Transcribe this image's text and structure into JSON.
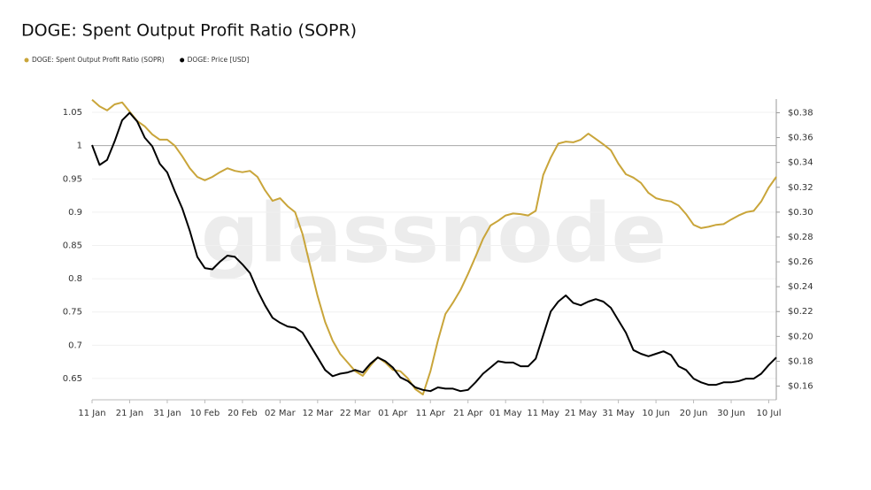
{
  "chart_data": {
    "type": "line",
    "title": "DOGE: Spent Output Profit Ratio (SOPR)",
    "watermark": "glassnode",
    "categories": [
      "11 Jan",
      null,
      null,
      null,
      null,
      "21 Jan",
      null,
      null,
      null,
      null,
      "31 Jan",
      null,
      null,
      null,
      null,
      "10 Feb",
      null,
      null,
      null,
      null,
      "20 Feb",
      null,
      null,
      null,
      null,
      "02 Mar",
      null,
      null,
      null,
      null,
      "12 Mar",
      null,
      null,
      null,
      null,
      "22 Mar",
      null,
      null,
      null,
      null,
      "01 Apr",
      null,
      null,
      null,
      null,
      "11 Apr",
      null,
      null,
      null,
      null,
      "21 Apr",
      null,
      null,
      null,
      null,
      "01 May",
      null,
      null,
      null,
      null,
      "11 May",
      null,
      null,
      null,
      null,
      "21 May",
      null,
      null,
      null,
      null,
      "31 May",
      null,
      null,
      null,
      null,
      "10 Jun",
      null,
      null,
      null,
      null,
      "20 Jun",
      null,
      null,
      null,
      null,
      "30 Jun",
      null,
      null,
      null,
      null,
      "10 Jul",
      null
    ],
    "series": [
      {
        "name": "DOGE: Spent Output Profit Ratio (SOPR)",
        "color": "#c9a53a",
        "axis": "y",
        "values": [
          1.069,
          1.059,
          1.053,
          1.062,
          1.065,
          1.051,
          1.037,
          1.029,
          1.017,
          1.009,
          1.009,
          1.0,
          0.984,
          0.966,
          0.953,
          0.948,
          0.953,
          0.96,
          0.966,
          0.962,
          0.96,
          0.962,
          0.953,
          0.933,
          0.917,
          0.921,
          0.909,
          0.9,
          0.867,
          0.82,
          0.774,
          0.735,
          0.707,
          0.687,
          0.674,
          0.661,
          0.654,
          0.669,
          0.682,
          0.674,
          0.663,
          0.661,
          0.65,
          0.634,
          0.626,
          0.661,
          0.707,
          0.747,
          0.764,
          0.783,
          0.807,
          0.833,
          0.86,
          0.88,
          0.887,
          0.895,
          0.898,
          0.897,
          0.895,
          0.902,
          0.956,
          0.982,
          1.003,
          1.006,
          1.005,
          1.009,
          1.018,
          1.01,
          1.002,
          0.993,
          0.973,
          0.957,
          0.952,
          0.944,
          0.929,
          0.921,
          0.918,
          0.916,
          0.91,
          0.897,
          0.881,
          0.876,
          0.878,
          0.881,
          0.882,
          0.889,
          0.895,
          0.9,
          0.902,
          0.916,
          0.937,
          0.953
        ]
      },
      {
        "name": "DOGE: Price [USD]",
        "color": "#000000",
        "axis": "y2",
        "values": [
          0.354,
          0.338,
          0.342,
          0.357,
          0.374,
          0.38,
          0.373,
          0.36,
          0.353,
          0.339,
          0.332,
          0.317,
          0.303,
          0.285,
          0.264,
          0.255,
          0.254,
          0.26,
          0.265,
          0.264,
          0.258,
          0.251,
          0.237,
          0.225,
          0.215,
          0.211,
          0.208,
          0.207,
          0.203,
          0.193,
          0.183,
          0.173,
          0.168,
          0.17,
          0.171,
          0.173,
          0.171,
          0.178,
          0.183,
          0.18,
          0.175,
          0.167,
          0.164,
          0.159,
          0.157,
          0.156,
          0.159,
          0.158,
          0.158,
          0.156,
          0.157,
          0.163,
          0.17,
          0.175,
          0.18,
          0.179,
          0.179,
          0.176,
          0.176,
          0.182,
          0.201,
          0.22,
          0.228,
          0.233,
          0.227,
          0.225,
          0.228,
          0.23,
          0.228,
          0.223,
          0.213,
          0.203,
          0.189,
          0.186,
          0.184,
          0.186,
          0.188,
          0.185,
          0.176,
          0.173,
          0.166,
          0.163,
          0.161,
          0.161,
          0.163,
          0.163,
          0.164,
          0.166,
          0.166,
          0.17,
          0.177,
          0.183
        ]
      }
    ],
    "ylim": [
      0.618,
      1.07
    ],
    "yticks": [
      0.65,
      0.7,
      0.75,
      0.8,
      0.85,
      0.9,
      0.95,
      1,
      1.05
    ],
    "y2lim": [
      0.149,
      0.391
    ],
    "y2ticks": [
      {
        "value": 0.16,
        "label": "$0.16"
      },
      {
        "value": 0.18,
        "label": "$0.18"
      },
      {
        "value": 0.2,
        "label": "$0.20"
      },
      {
        "value": 0.22,
        "label": "$0.22"
      },
      {
        "value": 0.24,
        "label": "$0.24"
      },
      {
        "value": 0.26,
        "label": "$0.26"
      },
      {
        "value": 0.28,
        "label": "$0.28"
      },
      {
        "value": 0.3,
        "label": "$0.30"
      },
      {
        "value": 0.32,
        "label": "$0.32"
      },
      {
        "value": 0.34,
        "label": "$0.34"
      },
      {
        "value": 0.36,
        "label": "$0.36"
      },
      {
        "value": 0.38,
        "label": "$0.38"
      }
    ],
    "reference_line": 1,
    "grid": true,
    "legend": "top-left"
  }
}
